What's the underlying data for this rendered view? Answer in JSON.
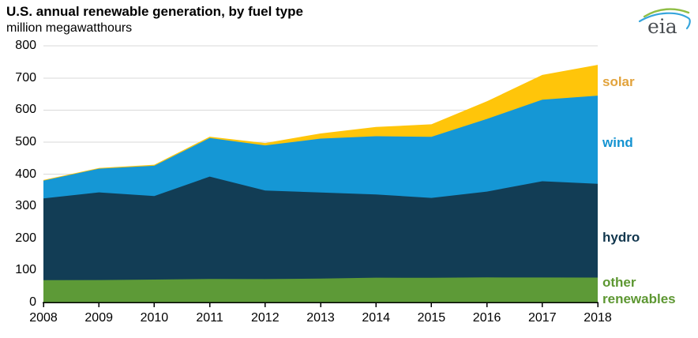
{
  "header": {
    "title": "U.S. annual renewable generation, by fuel type",
    "subtitle": "million megawatthours",
    "logo": {
      "text": "eia",
      "text_color": "#4a4e52",
      "arc_green": "#8fbe45",
      "arc_blue": "#36a5dc"
    }
  },
  "chart_data": {
    "type": "area",
    "stacked": true,
    "title": "U.S. annual renewable generation, by fuel type",
    "ylabel": "million megawatthours",
    "xlabel": "",
    "x": [
      2008,
      2009,
      2010,
      2011,
      2012,
      2013,
      2014,
      2015,
      2016,
      2017,
      2018
    ],
    "series": [
      {
        "name": "other renewables",
        "label_lines": [
          "other",
          "renewables"
        ],
        "color": "#5d9a37",
        "label_color": "#5d9732",
        "values": [
          69.8,
          69.9,
          71.5,
          73.2,
          72.8,
          74.6,
          77.3,
          76.9,
          78.1,
          77.8,
          77.6
        ]
      },
      {
        "name": "hydro",
        "label_lines": [
          "hydro"
        ],
        "color": "#123d55",
        "label_color": "#12374e",
        "values": [
          254.8,
          273.4,
          260.2,
          319.4,
          276.2,
          268.6,
          259.4,
          249.1,
          267.8,
          300.3,
          292.5
        ]
      },
      {
        "name": "wind",
        "label_lines": [
          "wind"
        ],
        "color": "#1597d5",
        "label_color": "#1493d1",
        "values": [
          55.4,
          73.9,
          94.7,
          120.2,
          140.8,
          167.8,
          181.7,
          190.7,
          226.5,
          254.3,
          274.9
        ]
      },
      {
        "name": "solar",
        "label_lines": [
          "solar"
        ],
        "color": "#ffc50a",
        "label_color": "#e2a33c",
        "values": [
          2.1,
          2.3,
          3.1,
          4.1,
          7.5,
          16.0,
          28.9,
          39.0,
          54.9,
          77.3,
          96.1
        ]
      }
    ],
    "ylim": [
      0,
      800
    ],
    "y_ticks": [
      0,
      100,
      200,
      300,
      400,
      500,
      600,
      700,
      800
    ],
    "grid": "horizontal",
    "grid_color": "#d9d9d9",
    "axis_color": "#000000",
    "legend_position": "right-labels"
  }
}
